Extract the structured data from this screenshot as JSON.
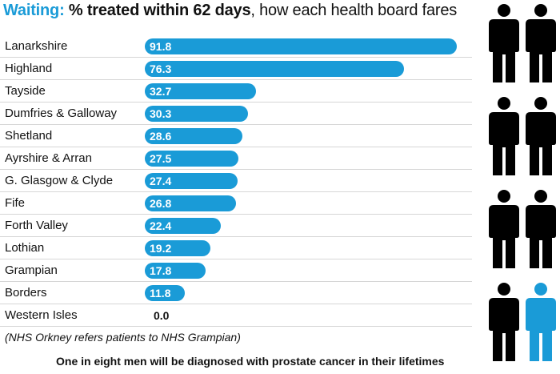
{
  "title": {
    "accent": "Waiting:",
    "bold": "% treated within 62 days",
    "rest": ", how each health board fares"
  },
  "chart_data": {
    "type": "bar",
    "orientation": "horizontal",
    "categories": [
      "Lanarkshire",
      "Highland",
      "Tayside",
      "Dumfries & Galloway",
      "Shetland",
      "Ayrshire & Arran",
      "G. Glasgow & Clyde",
      "Fife",
      "Forth Valley",
      "Lothian",
      "Grampian",
      "Borders",
      "Western Isles"
    ],
    "values": [
      91.8,
      76.3,
      32.7,
      30.3,
      28.6,
      27.5,
      27.4,
      26.8,
      22.4,
      19.2,
      17.8,
      11.8,
      0.0
    ],
    "value_labels": [
      "91.8",
      "76.3",
      "32.7",
      "30.3",
      "28.6",
      "27.5",
      "27.4",
      "26.8",
      "22.4",
      "19.2",
      "17.8",
      "11.8",
      "0.0"
    ],
    "xlim": [
      0,
      91.8
    ],
    "bar_color": "#1a9bd7",
    "grid": false
  },
  "footnote": "(NHS Orkney refers patients to NHS Grampian)",
  "caption": "One in eight men will be diagnosed with prostate cancer in their lifetimes",
  "pictogram": {
    "total": 8,
    "highlighted": 1,
    "figure_color": "#000000",
    "highlight_color": "#1a9bd7"
  },
  "colors": {
    "accent": "#1a9bd7",
    "text": "#111111",
    "separator": "#d6d6d6"
  }
}
